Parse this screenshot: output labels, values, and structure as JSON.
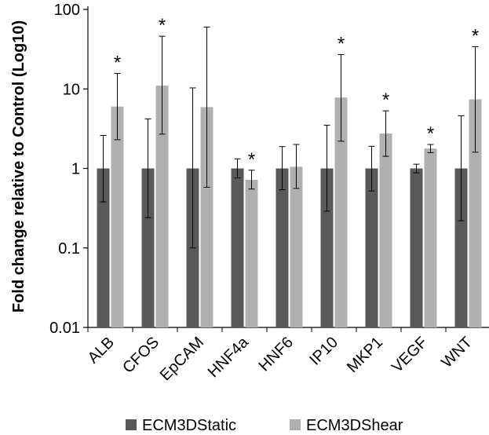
{
  "chart_data": {
    "type": "bar",
    "ylabel": "Fold change relative to Control (Log10)",
    "yscale": "log10",
    "ylim": [
      0.01,
      100
    ],
    "yticks": [
      "0.01",
      "0.1",
      "1",
      "10",
      "100"
    ],
    "grid": false,
    "legend_position": "bottom",
    "categories": [
      "ALB",
      "CFOS",
      "EpCAM",
      "HNF4a",
      "HNF6",
      "IP10",
      "MKP1",
      "VEGF",
      "WNT"
    ],
    "series": [
      {
        "name": "ECM3DStatic",
        "color": "#595959",
        "values": [
          1,
          1,
          1,
          1,
          1,
          1,
          1,
          1,
          1
        ],
        "error_low": [
          0.38,
          0.24,
          0.1,
          0.76,
          0.54,
          0.29,
          0.52,
          0.88,
          0.22
        ],
        "error_high": [
          2.6,
          4.2,
          10.3,
          1.32,
          1.88,
          3.5,
          1.9,
          1.13,
          4.6
        ]
      },
      {
        "name": "ECM3DShear",
        "color": "#b0b0b0",
        "values": [
          6.0,
          11.0,
          5.9,
          0.72,
          1.05,
          7.8,
          2.75,
          1.78,
          7.4
        ],
        "error_low": [
          2.3,
          2.7,
          0.58,
          0.55,
          0.56,
          2.2,
          1.42,
          1.58,
          1.6
        ],
        "error_high": [
          15.7,
          46.0,
          60.0,
          0.95,
          2.0,
          27.0,
          5.3,
          2.0,
          34.0
        ]
      }
    ],
    "significance": [
      true,
      true,
      false,
      true,
      false,
      true,
      true,
      true,
      true
    ],
    "significance_marker": "*"
  }
}
